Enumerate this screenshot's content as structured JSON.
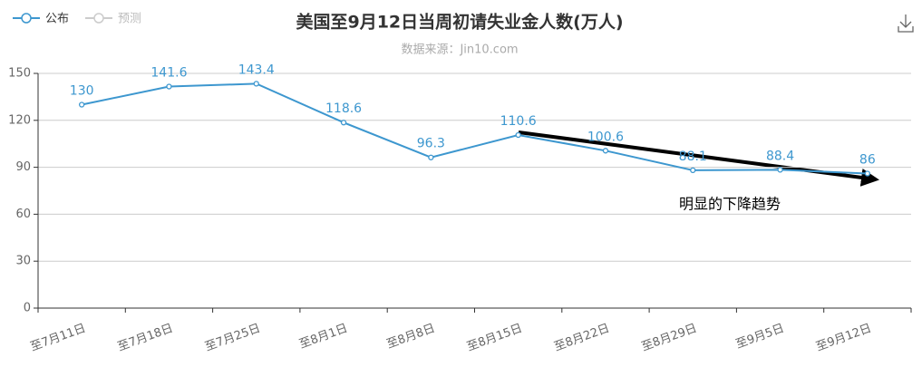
{
  "chart_data": {
    "type": "line",
    "title": "美国至9月12日当周初请失业金人数(万人)",
    "subtitle": "数据来源：Jin10.com",
    "categories": [
      "至7月11日",
      "至7月18日",
      "至7月25日",
      "至8月1日",
      "至8月8日",
      "至8月15日",
      "至8月22日",
      "至8月29日",
      "至9月5日",
      "至9月12日"
    ],
    "series": [
      {
        "name": "公布",
        "color": "#3d97cf",
        "values": [
          130,
          141.6,
          143.4,
          118.6,
          96.3,
          110.6,
          100.6,
          88.1,
          88.4,
          86
        ]
      },
      {
        "name": "预测",
        "color": "#cccccc",
        "values": [
          null,
          null,
          null,
          null,
          null,
          null,
          null,
          null,
          null,
          null
        ]
      }
    ],
    "ylim": [
      0,
      150
    ],
    "yticks": [
      0,
      30,
      60,
      90,
      120,
      150
    ],
    "grid": true,
    "annotation": "明显的下降趋势"
  }
}
